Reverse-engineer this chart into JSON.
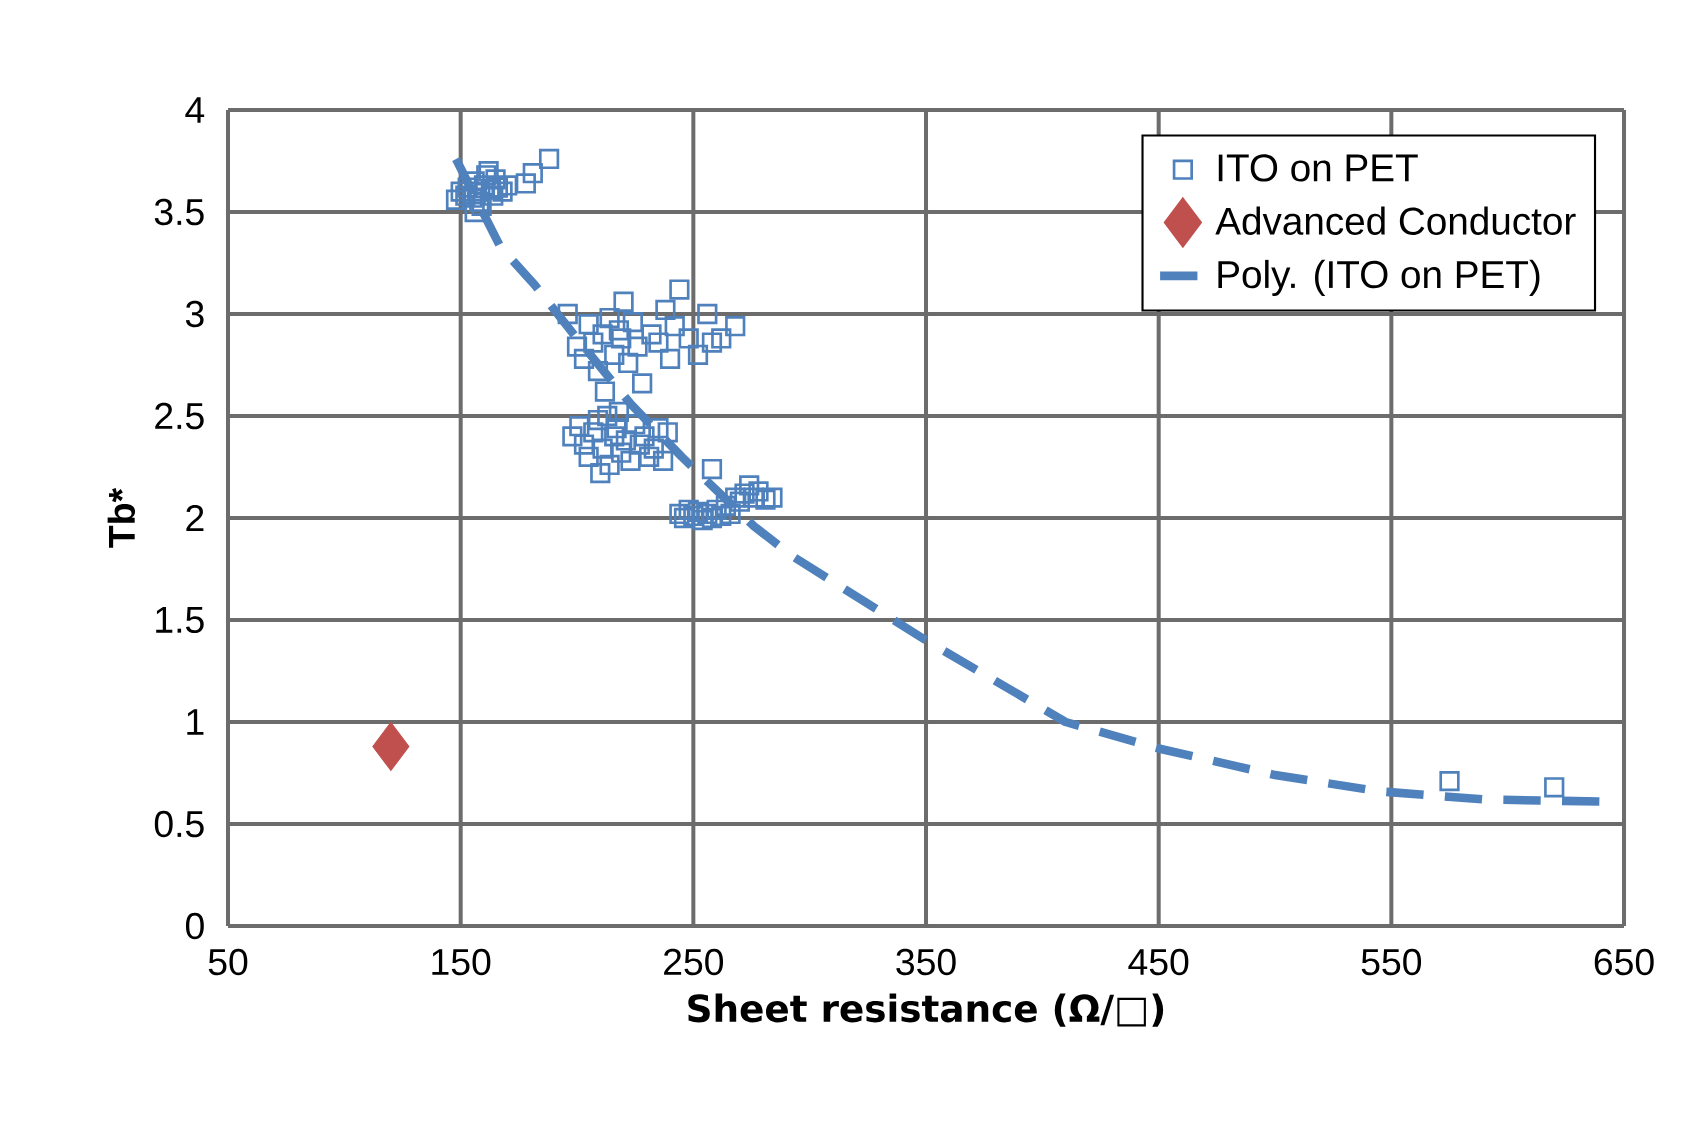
{
  "chart_data": {
    "type": "scatter",
    "xlabel": "Sheet resistance (Ω/□)",
    "ylabel": "Tb*",
    "xlim": [
      50,
      650
    ],
    "xticks": [
      50,
      150,
      250,
      350,
      450,
      550,
      650
    ],
    "ylim": [
      0,
      4
    ],
    "yticks": [
      0,
      0.5,
      1,
      1.5,
      2,
      2.5,
      3,
      3.5,
      4
    ],
    "grid": true,
    "legend": "top right",
    "series": [
      {
        "name": "ITO on PET",
        "marker": "square",
        "color": "#4f81bd",
        "x": [
          148,
          150,
          152,
          153,
          155,
          156,
          157,
          158,
          160,
          161,
          162,
          163,
          164,
          165,
          166,
          168,
          170,
          156,
          159,
          178,
          181,
          188,
          196,
          200,
          203,
          205,
          207,
          209,
          211,
          212,
          214,
          216,
          218,
          219,
          220,
          222,
          224,
          226,
          228,
          232,
          235,
          238,
          240,
          242,
          244,
          248,
          252,
          256,
          258,
          262,
          268,
          198,
          201,
          203,
          205,
          207,
          209,
          211,
          213,
          214,
          216,
          217,
          219,
          221,
          223,
          225,
          227,
          229,
          231,
          233,
          235,
          237,
          239,
          210,
          218,
          244,
          246,
          248,
          250,
          252,
          254,
          256,
          258,
          260,
          262,
          264,
          266,
          268,
          270,
          272,
          274,
          276,
          278,
          281,
          284,
          258,
          575,
          620
        ],
        "values": [
          3.56,
          3.6,
          3.58,
          3.62,
          3.57,
          3.65,
          3.6,
          3.55,
          3.63,
          3.68,
          3.7,
          3.61,
          3.58,
          3.66,
          3.62,
          3.6,
          3.63,
          3.5,
          3.53,
          3.64,
          3.69,
          3.76,
          3.0,
          2.84,
          2.78,
          2.95,
          2.86,
          2.72,
          2.9,
          2.62,
          2.98,
          2.8,
          2.92,
          2.88,
          3.06,
          2.76,
          2.96,
          2.84,
          2.66,
          2.9,
          2.86,
          3.02,
          2.78,
          2.94,
          3.12,
          2.88,
          2.8,
          3.0,
          2.86,
          2.88,
          2.94,
          2.4,
          2.45,
          2.36,
          2.3,
          2.42,
          2.48,
          2.34,
          2.5,
          2.26,
          2.4,
          2.44,
          2.32,
          2.38,
          2.28,
          2.46,
          2.36,
          2.4,
          2.3,
          2.34,
          2.44,
          2.28,
          2.42,
          2.22,
          2.52,
          2.02,
          2.0,
          2.04,
          2.01,
          2.03,
          1.99,
          2.02,
          2.0,
          2.04,
          2.01,
          2.06,
          2.02,
          2.1,
          2.08,
          2.12,
          2.16,
          2.1,
          2.13,
          2.09,
          2.1,
          2.24,
          0.71,
          0.68
        ]
      },
      {
        "name": "Advanced Conductor",
        "marker": "diamond",
        "color": "#c0504d",
        "x": [
          120
        ],
        "values": [
          0.88
        ]
      },
      {
        "name": "Poly. (ITO on PET)",
        "type": "line",
        "line_style": "dashed",
        "marker": "none",
        "color": "#4f81bd",
        "x": [
          148,
          167,
          182,
          200,
          223,
          245,
          276,
          293,
          350,
          410,
          450,
          500,
          545,
          590,
          640
        ],
        "values": [
          3.76,
          3.33,
          3.14,
          2.88,
          2.56,
          2.3,
          1.96,
          1.81,
          1.4,
          1.0,
          0.87,
          0.74,
          0.66,
          0.62,
          0.61
        ]
      }
    ]
  }
}
